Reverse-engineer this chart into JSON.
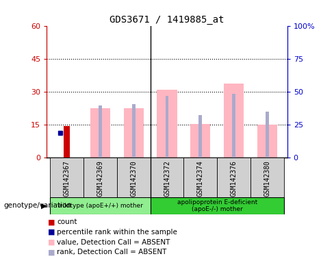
{
  "title": "GDS3671 / 1419885_at",
  "samples": [
    "GSM142367",
    "GSM142369",
    "GSM142370",
    "GSM142372",
    "GSM142374",
    "GSM142376",
    "GSM142380"
  ],
  "count_values": [
    14.5,
    0,
    0,
    0,
    0,
    0,
    0
  ],
  "percentile_rank_pct": [
    19.0,
    0,
    0,
    0,
    0,
    0,
    0
  ],
  "value_absent": [
    0,
    22.5,
    22.5,
    31.0,
    15.5,
    34.0,
    15.0
  ],
  "rank_absent_pct": [
    0,
    40.0,
    41.0,
    47.0,
    32.5,
    48.5,
    35.0
  ],
  "groups": [
    {
      "label": "wildtype (apoE+/+) mother",
      "samples": [
        0,
        1,
        2
      ],
      "color": "#90EE90"
    },
    {
      "label": "apolipoprotein E-deficient\n(apoE-/-) mother",
      "samples": [
        3,
        4,
        5,
        6
      ],
      "color": "#33CC33"
    }
  ],
  "ylim_left": [
    0,
    60
  ],
  "ylim_right": [
    0,
    100
  ],
  "yticks_left": [
    0,
    15,
    30,
    45,
    60
  ],
  "yticks_right": [
    0,
    25,
    50,
    75,
    100
  ],
  "ytick_labels_left": [
    "0",
    "15",
    "30",
    "45",
    "60"
  ],
  "ytick_labels_right": [
    "0",
    "25",
    "50",
    "75",
    "100%"
  ],
  "left_axis_color": "#CC0000",
  "right_axis_color": "#0000CC",
  "bar_pink": "#FFB6C1",
  "bar_lightblue": "#AAAACC",
  "count_color": "#CC0000",
  "percentile_color": "#000099",
  "group_label": "genotype/variation",
  "legend_labels": [
    "count",
    "percentile rank within the sample",
    "value, Detection Call = ABSENT",
    "rank, Detection Call = ABSENT"
  ],
  "legend_colors": [
    "#CC0000",
    "#000099",
    "#FFB6C1",
    "#AAAACC"
  ]
}
